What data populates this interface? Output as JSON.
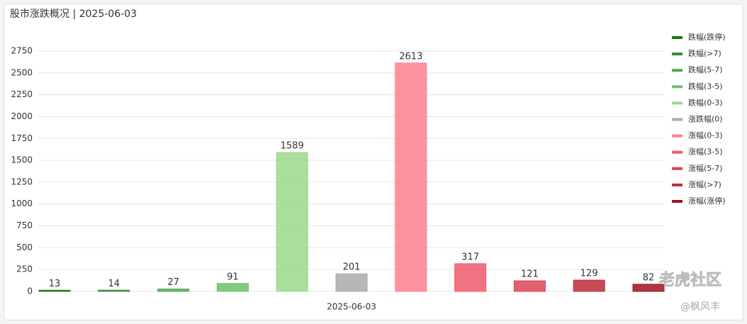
{
  "chart_data": {
    "type": "bar",
    "title": "股市涨跌概况 | 2025-06-03",
    "categories": [
      "2025-06-03"
    ],
    "series": [
      {
        "name": "跌幅(跌停)",
        "color": "#157a15",
        "values": [
          13
        ]
      },
      {
        "name": "跌幅(>7)",
        "color": "#3a8a3a",
        "values": [
          14
        ]
      },
      {
        "name": "跌幅(5-7)",
        "color": "#4fa84f",
        "values": [
          27
        ]
      },
      {
        "name": "跌幅(3-5)",
        "color": "#6fbf6a",
        "values": [
          91
        ]
      },
      {
        "name": "跌幅(0-3)",
        "color": "#9ad88c",
        "values": [
          1589
        ]
      },
      {
        "name": "涨跌幅(0)",
        "color": "#aaaaaa",
        "values": [
          201
        ]
      },
      {
        "name": "涨幅(0-3)",
        "color": "#ff7f8e",
        "values": [
          2613
        ]
      },
      {
        "name": "涨幅(3-5)",
        "color": "#ee5a6c",
        "values": [
          317
        ]
      },
      {
        "name": "涨幅(5-7)",
        "color": "#dd4455",
        "values": [
          121
        ]
      },
      {
        "name": "涨幅(>7)",
        "color": "#c02a3a",
        "values": [
          129
        ]
      },
      {
        "name": "涨幅(涨停)",
        "color": "#9b1424",
        "values": [
          82
        ]
      }
    ],
    "ylim": [
      0,
      2750
    ],
    "yticks": [
      0,
      250,
      500,
      750,
      1000,
      1250,
      1500,
      1750,
      2000,
      2250,
      2500,
      2750
    ],
    "grid": true,
    "legend": "right",
    "watermark": [
      "老虎社区",
      "@枫风丰"
    ]
  }
}
